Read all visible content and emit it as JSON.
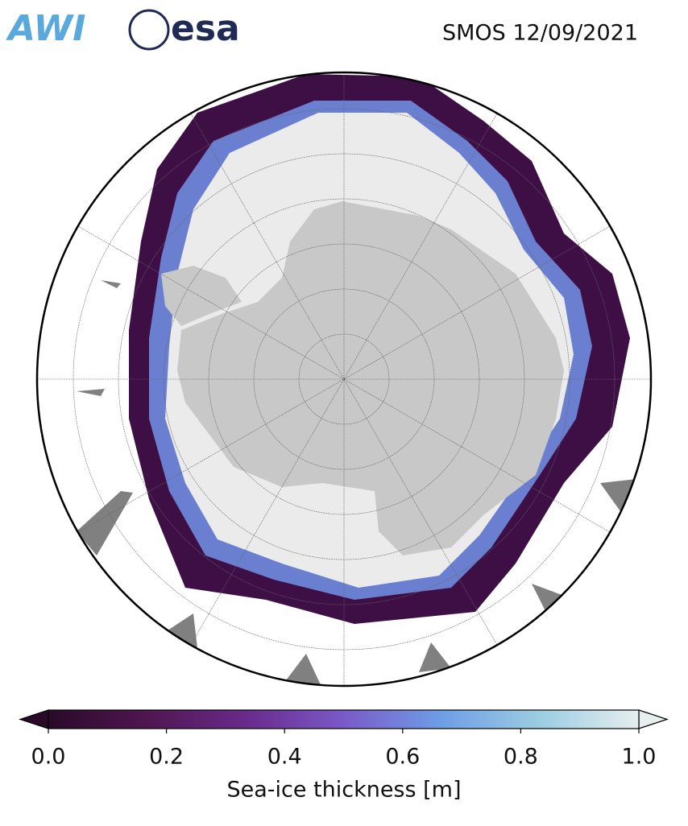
{
  "logos": [
    "AWI",
    "esa"
  ],
  "title": "SMOS 12/09/2021",
  "colorbar": {
    "label": "Sea-ice thickness [m]",
    "lim": [
      0,
      1
    ],
    "ticks": [
      {
        "value": 0,
        "label": "0.0"
      },
      {
        "value": 0.2,
        "label": "0.2"
      },
      {
        "value": 0.4,
        "label": "0.4"
      },
      {
        "value": 0.6,
        "label": "0.6"
      },
      {
        "value": 0.8,
        "label": "0.8"
      },
      {
        "value": 1,
        "label": "1.0"
      }
    ],
    "colormap": [
      "#2a0a28",
      "#4f1650",
      "#6a2a8a",
      "#7a5ac8",
      "#6e9ee6",
      "#9ccde2",
      "#e6eeee"
    ]
  }
}
